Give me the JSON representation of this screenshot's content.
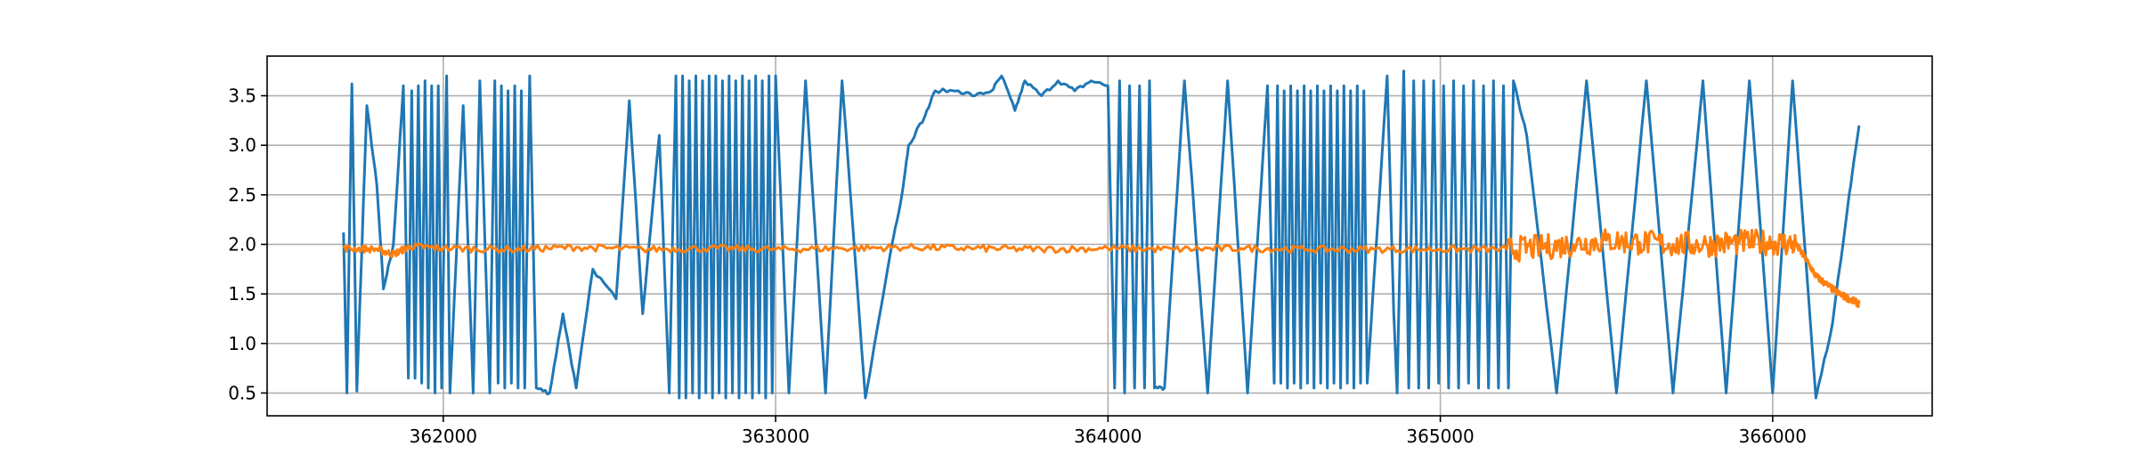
{
  "chart_data": {
    "type": "line",
    "title": "",
    "xlabel": "",
    "ylabel": "",
    "xlim": [
      361470,
      366480
    ],
    "ylim": [
      0.27,
      3.9
    ],
    "grid": true,
    "legend": "none",
    "x_ticks": [
      362000,
      363000,
      364000,
      365000,
      366000
    ],
    "x_tick_labels": [
      "362000",
      "363000",
      "364000",
      "365000",
      "366000"
    ],
    "y_ticks": [
      0.5,
      1.0,
      1.5,
      2.0,
      2.5,
      3.0,
      3.5
    ],
    "y_tick_labels": [
      "0.5",
      "1.0",
      "1.5",
      "2.0",
      "2.5",
      "3.0",
      "3.5"
    ],
    "series": [
      {
        "color": "#1f77b4",
        "points": [
          [
            361700,
            2.12
          ],
          [
            361710,
            0.5
          ],
          [
            361725,
            3.62
          ],
          [
            361740,
            0.52
          ],
          [
            361770,
            3.4
          ],
          [
            361800,
            2.6
          ],
          [
            361820,
            1.55
          ],
          [
            361850,
            2.0
          ],
          [
            361880,
            3.6
          ],
          [
            361895,
            0.65
          ],
          [
            361905,
            3.55
          ],
          [
            361915,
            0.65
          ],
          [
            361925,
            3.6
          ],
          [
            361935,
            0.6
          ],
          [
            361945,
            3.65
          ],
          [
            361955,
            0.55
          ],
          [
            361965,
            3.6
          ],
          [
            361975,
            0.5
          ],
          [
            361985,
            3.6
          ],
          [
            361995,
            0.55
          ],
          [
            362010,
            3.7
          ],
          [
            362020,
            0.5
          ],
          [
            362060,
            3.4
          ],
          [
            362090,
            0.5
          ],
          [
            362110,
            3.65
          ],
          [
            362140,
            0.5
          ],
          [
            362155,
            3.65
          ],
          [
            362165,
            0.6
          ],
          [
            362175,
            3.6
          ],
          [
            362185,
            0.55
          ],
          [
            362195,
            3.55
          ],
          [
            362205,
            0.6
          ],
          [
            362215,
            3.6
          ],
          [
            362225,
            0.55
          ],
          [
            362235,
            3.55
          ],
          [
            362245,
            0.55
          ],
          [
            362260,
            3.7
          ],
          [
            362280,
            0.55
          ],
          [
            362320,
            0.5
          ],
          [
            362360,
            1.3
          ],
          [
            362400,
            0.55
          ],
          [
            362450,
            1.75
          ],
          [
            362520,
            1.45
          ],
          [
            362560,
            3.45
          ],
          [
            362600,
            1.3
          ],
          [
            362650,
            3.1
          ],
          [
            362680,
            0.5
          ],
          [
            362700,
            3.7
          ],
          [
            362710,
            0.45
          ],
          [
            362720,
            3.7
          ],
          [
            362730,
            0.45
          ],
          [
            362740,
            3.65
          ],
          [
            362750,
            0.5
          ],
          [
            362760,
            3.7
          ],
          [
            362770,
            0.45
          ],
          [
            362780,
            3.65
          ],
          [
            362790,
            0.5
          ],
          [
            362800,
            3.7
          ],
          [
            362810,
            0.45
          ],
          [
            362820,
            3.7
          ],
          [
            362830,
            0.5
          ],
          [
            362840,
            3.65
          ],
          [
            362850,
            0.45
          ],
          [
            362860,
            3.7
          ],
          [
            362870,
            0.5
          ],
          [
            362880,
            3.65
          ],
          [
            362890,
            0.45
          ],
          [
            362900,
            3.7
          ],
          [
            362910,
            0.5
          ],
          [
            362920,
            3.65
          ],
          [
            362930,
            0.45
          ],
          [
            362940,
            3.7
          ],
          [
            362950,
            0.5
          ],
          [
            362960,
            3.65
          ],
          [
            362970,
            0.45
          ],
          [
            362980,
            3.7
          ],
          [
            362990,
            0.5
          ],
          [
            363000,
            3.7
          ],
          [
            363040,
            0.5
          ],
          [
            363090,
            3.65
          ],
          [
            363150,
            0.5
          ],
          [
            363200,
            3.65
          ],
          [
            363270,
            0.45
          ],
          [
            363350,
            2.0
          ],
          [
            363380,
            2.5
          ],
          [
            363400,
            3.0
          ],
          [
            363450,
            3.3
          ],
          [
            363480,
            3.55
          ],
          [
            363550,
            3.55
          ],
          [
            363600,
            3.5
          ],
          [
            363650,
            3.55
          ],
          [
            363680,
            3.7
          ],
          [
            363720,
            3.35
          ],
          [
            363750,
            3.65
          ],
          [
            363800,
            3.5
          ],
          [
            363850,
            3.65
          ],
          [
            363900,
            3.55
          ],
          [
            363950,
            3.65
          ],
          [
            364000,
            3.6
          ],
          [
            364020,
            0.55
          ],
          [
            364035,
            3.65
          ],
          [
            364050,
            0.5
          ],
          [
            364065,
            3.6
          ],
          [
            364080,
            0.55
          ],
          [
            364095,
            3.6
          ],
          [
            364110,
            0.55
          ],
          [
            364125,
            3.65
          ],
          [
            364140,
            0.55
          ],
          [
            364170,
            0.55
          ],
          [
            364230,
            3.65
          ],
          [
            364300,
            0.5
          ],
          [
            364360,
            3.65
          ],
          [
            364420,
            0.5
          ],
          [
            364480,
            3.6
          ],
          [
            364500,
            0.6
          ],
          [
            364510,
            3.6
          ],
          [
            364520,
            0.6
          ],
          [
            364530,
            3.55
          ],
          [
            364540,
            0.55
          ],
          [
            364550,
            3.6
          ],
          [
            364560,
            0.6
          ],
          [
            364570,
            3.55
          ],
          [
            364580,
            0.55
          ],
          [
            364590,
            3.6
          ],
          [
            364600,
            0.6
          ],
          [
            364610,
            3.55
          ],
          [
            364620,
            0.55
          ],
          [
            364630,
            3.6
          ],
          [
            364640,
            0.6
          ],
          [
            364650,
            3.55
          ],
          [
            364660,
            0.55
          ],
          [
            364670,
            3.6
          ],
          [
            364680,
            0.6
          ],
          [
            364690,
            3.55
          ],
          [
            364700,
            0.55
          ],
          [
            364710,
            3.6
          ],
          [
            364720,
            0.6
          ],
          [
            364730,
            3.55
          ],
          [
            364740,
            0.55
          ],
          [
            364750,
            3.6
          ],
          [
            364760,
            0.6
          ],
          [
            364770,
            3.55
          ],
          [
            364780,
            0.6
          ],
          [
            364840,
            3.7
          ],
          [
            364860,
            1.3
          ],
          [
            364870,
            0.5
          ],
          [
            364890,
            3.75
          ],
          [
            364905,
            0.55
          ],
          [
            364920,
            3.65
          ],
          [
            364935,
            0.55
          ],
          [
            364950,
            3.65
          ],
          [
            364965,
            0.55
          ],
          [
            364980,
            3.65
          ],
          [
            364995,
            0.6
          ],
          [
            365010,
            3.6
          ],
          [
            365025,
            0.55
          ],
          [
            365040,
            3.65
          ],
          [
            365055,
            0.55
          ],
          [
            365070,
            3.6
          ],
          [
            365085,
            0.6
          ],
          [
            365100,
            3.65
          ],
          [
            365115,
            0.55
          ],
          [
            365130,
            3.6
          ],
          [
            365145,
            0.55
          ],
          [
            365160,
            3.65
          ],
          [
            365175,
            0.55
          ],
          [
            365190,
            3.6
          ],
          [
            365205,
            0.55
          ],
          [
            365220,
            3.65
          ],
          [
            365260,
            3.1
          ],
          [
            365350,
            0.5
          ],
          [
            365440,
            3.65
          ],
          [
            365530,
            0.5
          ],
          [
            365620,
            3.65
          ],
          [
            365700,
            0.5
          ],
          [
            365790,
            3.65
          ],
          [
            365860,
            0.5
          ],
          [
            365930,
            3.65
          ],
          [
            366000,
            0.5
          ],
          [
            366060,
            3.65
          ],
          [
            366130,
            0.45
          ],
          [
            366180,
            1.2
          ],
          [
            366230,
            2.5
          ],
          [
            366260,
            3.2
          ]
        ]
      },
      {
        "color": "#ff7f0e",
        "points": [
          [
            361700,
            1.96
          ],
          [
            361800,
            1.95
          ],
          [
            361850,
            1.9
          ],
          [
            361900,
            1.98
          ],
          [
            362000,
            1.96
          ],
          [
            362200,
            1.95
          ],
          [
            362400,
            1.97
          ],
          [
            362600,
            1.95
          ],
          [
            362800,
            1.96
          ],
          [
            363000,
            1.95
          ],
          [
            363200,
            1.96
          ],
          [
            363400,
            1.97
          ],
          [
            363600,
            1.96
          ],
          [
            363800,
            1.95
          ],
          [
            364000,
            1.96
          ],
          [
            364200,
            1.95
          ],
          [
            364400,
            1.96
          ],
          [
            364600,
            1.95
          ],
          [
            364800,
            1.95
          ],
          [
            365000,
            1.95
          ],
          [
            365200,
            1.95
          ],
          [
            365300,
            1.97
          ],
          [
            365400,
            2.0
          ],
          [
            365500,
            2.04
          ],
          [
            365600,
            2.02
          ],
          [
            365700,
            2.0
          ],
          [
            365800,
            2.0
          ],
          [
            365900,
            2.02
          ],
          [
            366000,
            2.02
          ],
          [
            366070,
            2.0
          ],
          [
            366100,
            1.85
          ],
          [
            366130,
            1.68
          ],
          [
            366160,
            1.6
          ],
          [
            366200,
            1.5
          ],
          [
            366230,
            1.45
          ],
          [
            366260,
            1.4
          ]
        ]
      }
    ]
  }
}
